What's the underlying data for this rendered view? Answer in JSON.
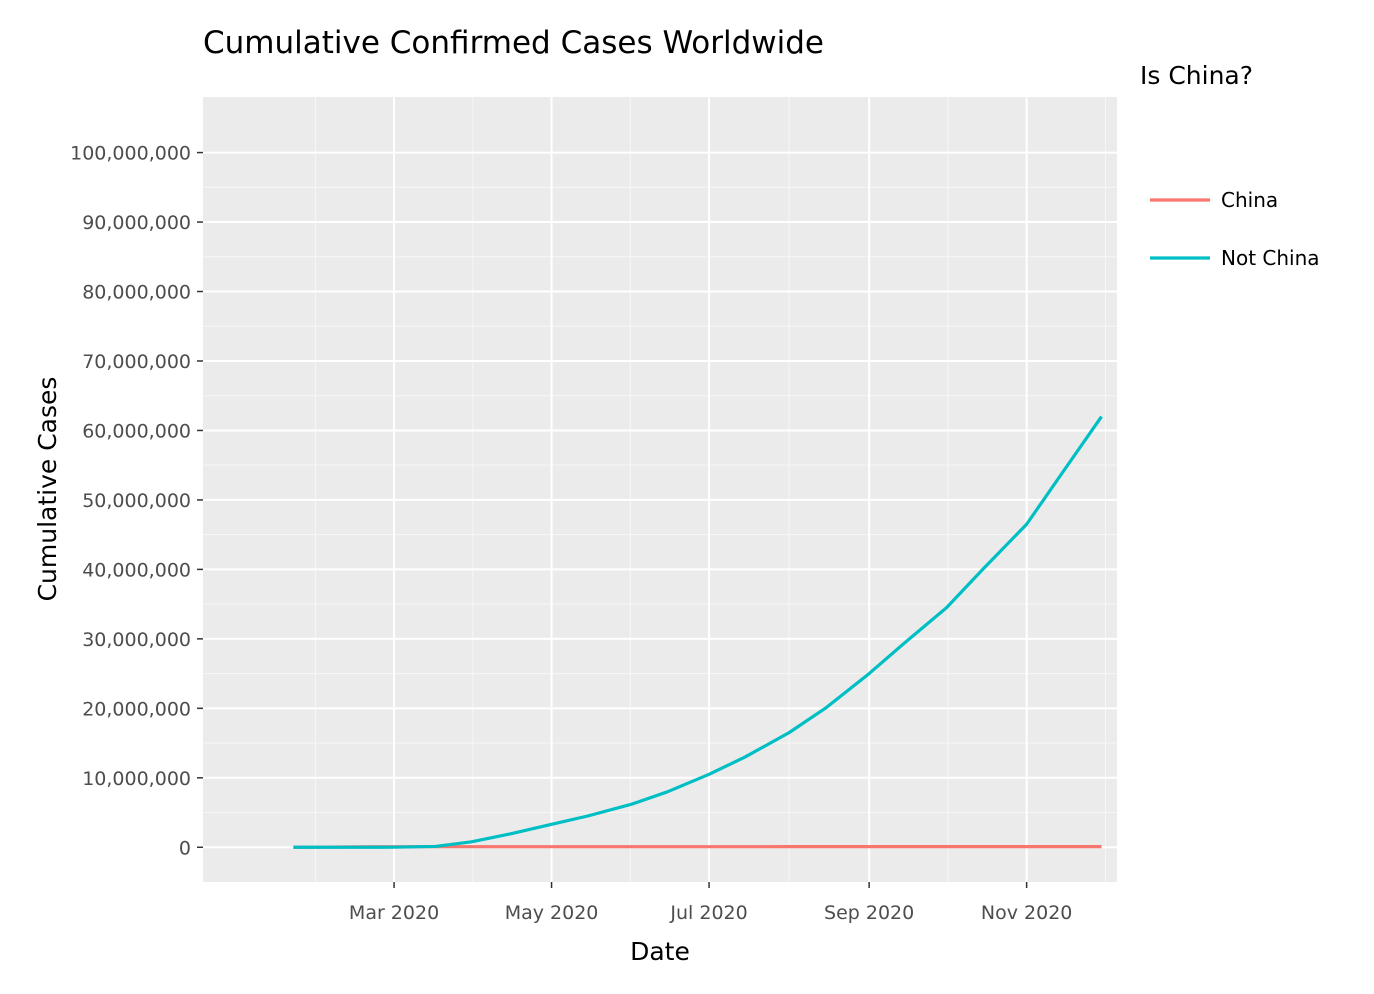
{
  "chart_data": {
    "type": "line",
    "title": "Cumulative Confirmed Cases Worldwide",
    "xlabel": "Date",
    "ylabel": "Cumulative Cases",
    "xlim": [
      "2019-12-18",
      "2020-12-06"
    ],
    "ylim": [
      -5000000,
      108000000
    ],
    "x_ticks": [
      {
        "date": "2020-03-01",
        "label": "Mar 2020"
      },
      {
        "date": "2020-05-01",
        "label": "May 2020"
      },
      {
        "date": "2020-07-01",
        "label": "Jul 2020"
      },
      {
        "date": "2020-09-01",
        "label": "Sep 2020"
      },
      {
        "date": "2020-11-01",
        "label": "Nov 2020"
      }
    ],
    "y_ticks": [
      {
        "value": 0,
        "label": "0"
      },
      {
        "value": 10000000,
        "label": "10,000,000"
      },
      {
        "value": 20000000,
        "label": "20,000,000"
      },
      {
        "value": 30000000,
        "label": "30,000,000"
      },
      {
        "value": 40000000,
        "label": "40,000,000"
      },
      {
        "value": 50000000,
        "label": "50,000,000"
      },
      {
        "value": 60000000,
        "label": "60,000,000"
      },
      {
        "value": 70000000,
        "label": "70,000,000"
      },
      {
        "value": 80000000,
        "label": "80,000,000"
      },
      {
        "value": 90000000,
        "label": "90,000,000"
      },
      {
        "value": 100000000,
        "label": "100,000,000"
      }
    ],
    "legend": {
      "title": "Is China?",
      "position": "right"
    },
    "grid": true,
    "series": [
      {
        "name": "China",
        "color": "#F8766D",
        "points": [
          {
            "x": "2020-01-22",
            "y": 548
          },
          {
            "x": "2020-02-01",
            "y": 11000
          },
          {
            "x": "2020-02-15",
            "y": 68000
          },
          {
            "x": "2020-03-01",
            "y": 79900
          },
          {
            "x": "2020-04-01",
            "y": 82300
          },
          {
            "x": "2020-06-01",
            "y": 84100
          },
          {
            "x": "2020-08-01",
            "y": 87700
          },
          {
            "x": "2020-10-01",
            "y": 90500
          },
          {
            "x": "2020-11-30",
            "y": 93000
          }
        ]
      },
      {
        "name": "Not China",
        "color": "#00BFC4",
        "points": [
          {
            "x": "2020-01-22",
            "y": 7
          },
          {
            "x": "2020-02-15",
            "y": 700
          },
          {
            "x": "2020-03-01",
            "y": 8000
          },
          {
            "x": "2020-03-17",
            "y": 120000
          },
          {
            "x": "2020-03-31",
            "y": 780000
          },
          {
            "x": "2020-04-16",
            "y": 2000000
          },
          {
            "x": "2020-05-01",
            "y": 3300000
          },
          {
            "x": "2020-05-15",
            "y": 4500000
          },
          {
            "x": "2020-06-01",
            "y": 6200000
          },
          {
            "x": "2020-06-15",
            "y": 8000000
          },
          {
            "x": "2020-07-01",
            "y": 10500000
          },
          {
            "x": "2020-07-15",
            "y": 13000000
          },
          {
            "x": "2020-08-01",
            "y": 16500000
          },
          {
            "x": "2020-08-15",
            "y": 20000000
          },
          {
            "x": "2020-09-01",
            "y": 25000000
          },
          {
            "x": "2020-09-15",
            "y": 29500000
          },
          {
            "x": "2020-10-01",
            "y": 34500000
          },
          {
            "x": "2020-10-15",
            "y": 40000000
          },
          {
            "x": "2020-11-01",
            "y": 46500000
          },
          {
            "x": "2020-11-15",
            "y": 54000000
          },
          {
            "x": "2020-11-30",
            "y": 62000000
          }
        ]
      }
    ]
  }
}
